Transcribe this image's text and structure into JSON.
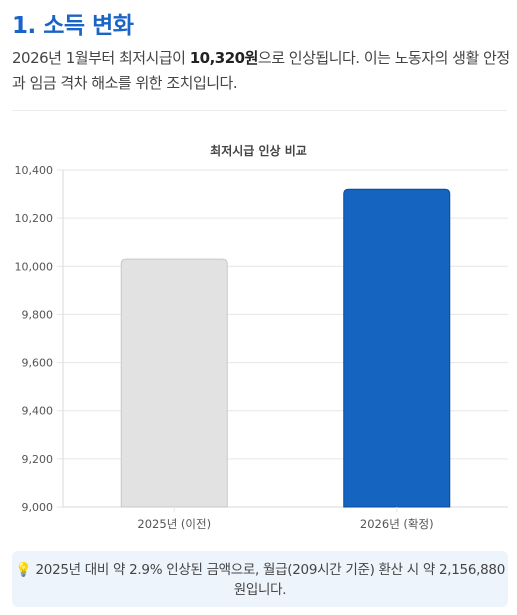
{
  "header": {
    "title": "1. 소득 변화"
  },
  "intro": {
    "before": "2026년 1월부터 최저시급이 ",
    "highlight": "10,320원",
    "after": "으로 인상됩니다. 이는 노동자의 생활 안정과 임금 격차 해소를 위한 조치입니다."
  },
  "chart_data": {
    "type": "bar",
    "title": "최저시급 인상 비교",
    "categories": [
      "2025년 (이전)",
      "2026년 (확정)"
    ],
    "values": [
      10030,
      10320
    ],
    "colors": [
      "#e2e2e2",
      "#1565c0"
    ],
    "border_colors": [
      "#c8c8c8",
      "#0d47a1"
    ],
    "ylim": [
      9000,
      10400
    ],
    "yticks": [
      9000,
      9200,
      9400,
      9600,
      9800,
      10000,
      10200,
      10400
    ],
    "ytick_labels": [
      "9,000",
      "9,200",
      "9,400",
      "9,600",
      "9,800",
      "10,000",
      "10,200",
      "10,400"
    ],
    "xlabel": "",
    "ylabel": "",
    "grid": true,
    "legend": false
  },
  "note": {
    "icon": "lightbulb-icon",
    "text": "2025년 대비 약 2.9% 인상된 금액으로, 월급(209시간 기준) 환산 시 약 2,156,880원입니다."
  }
}
